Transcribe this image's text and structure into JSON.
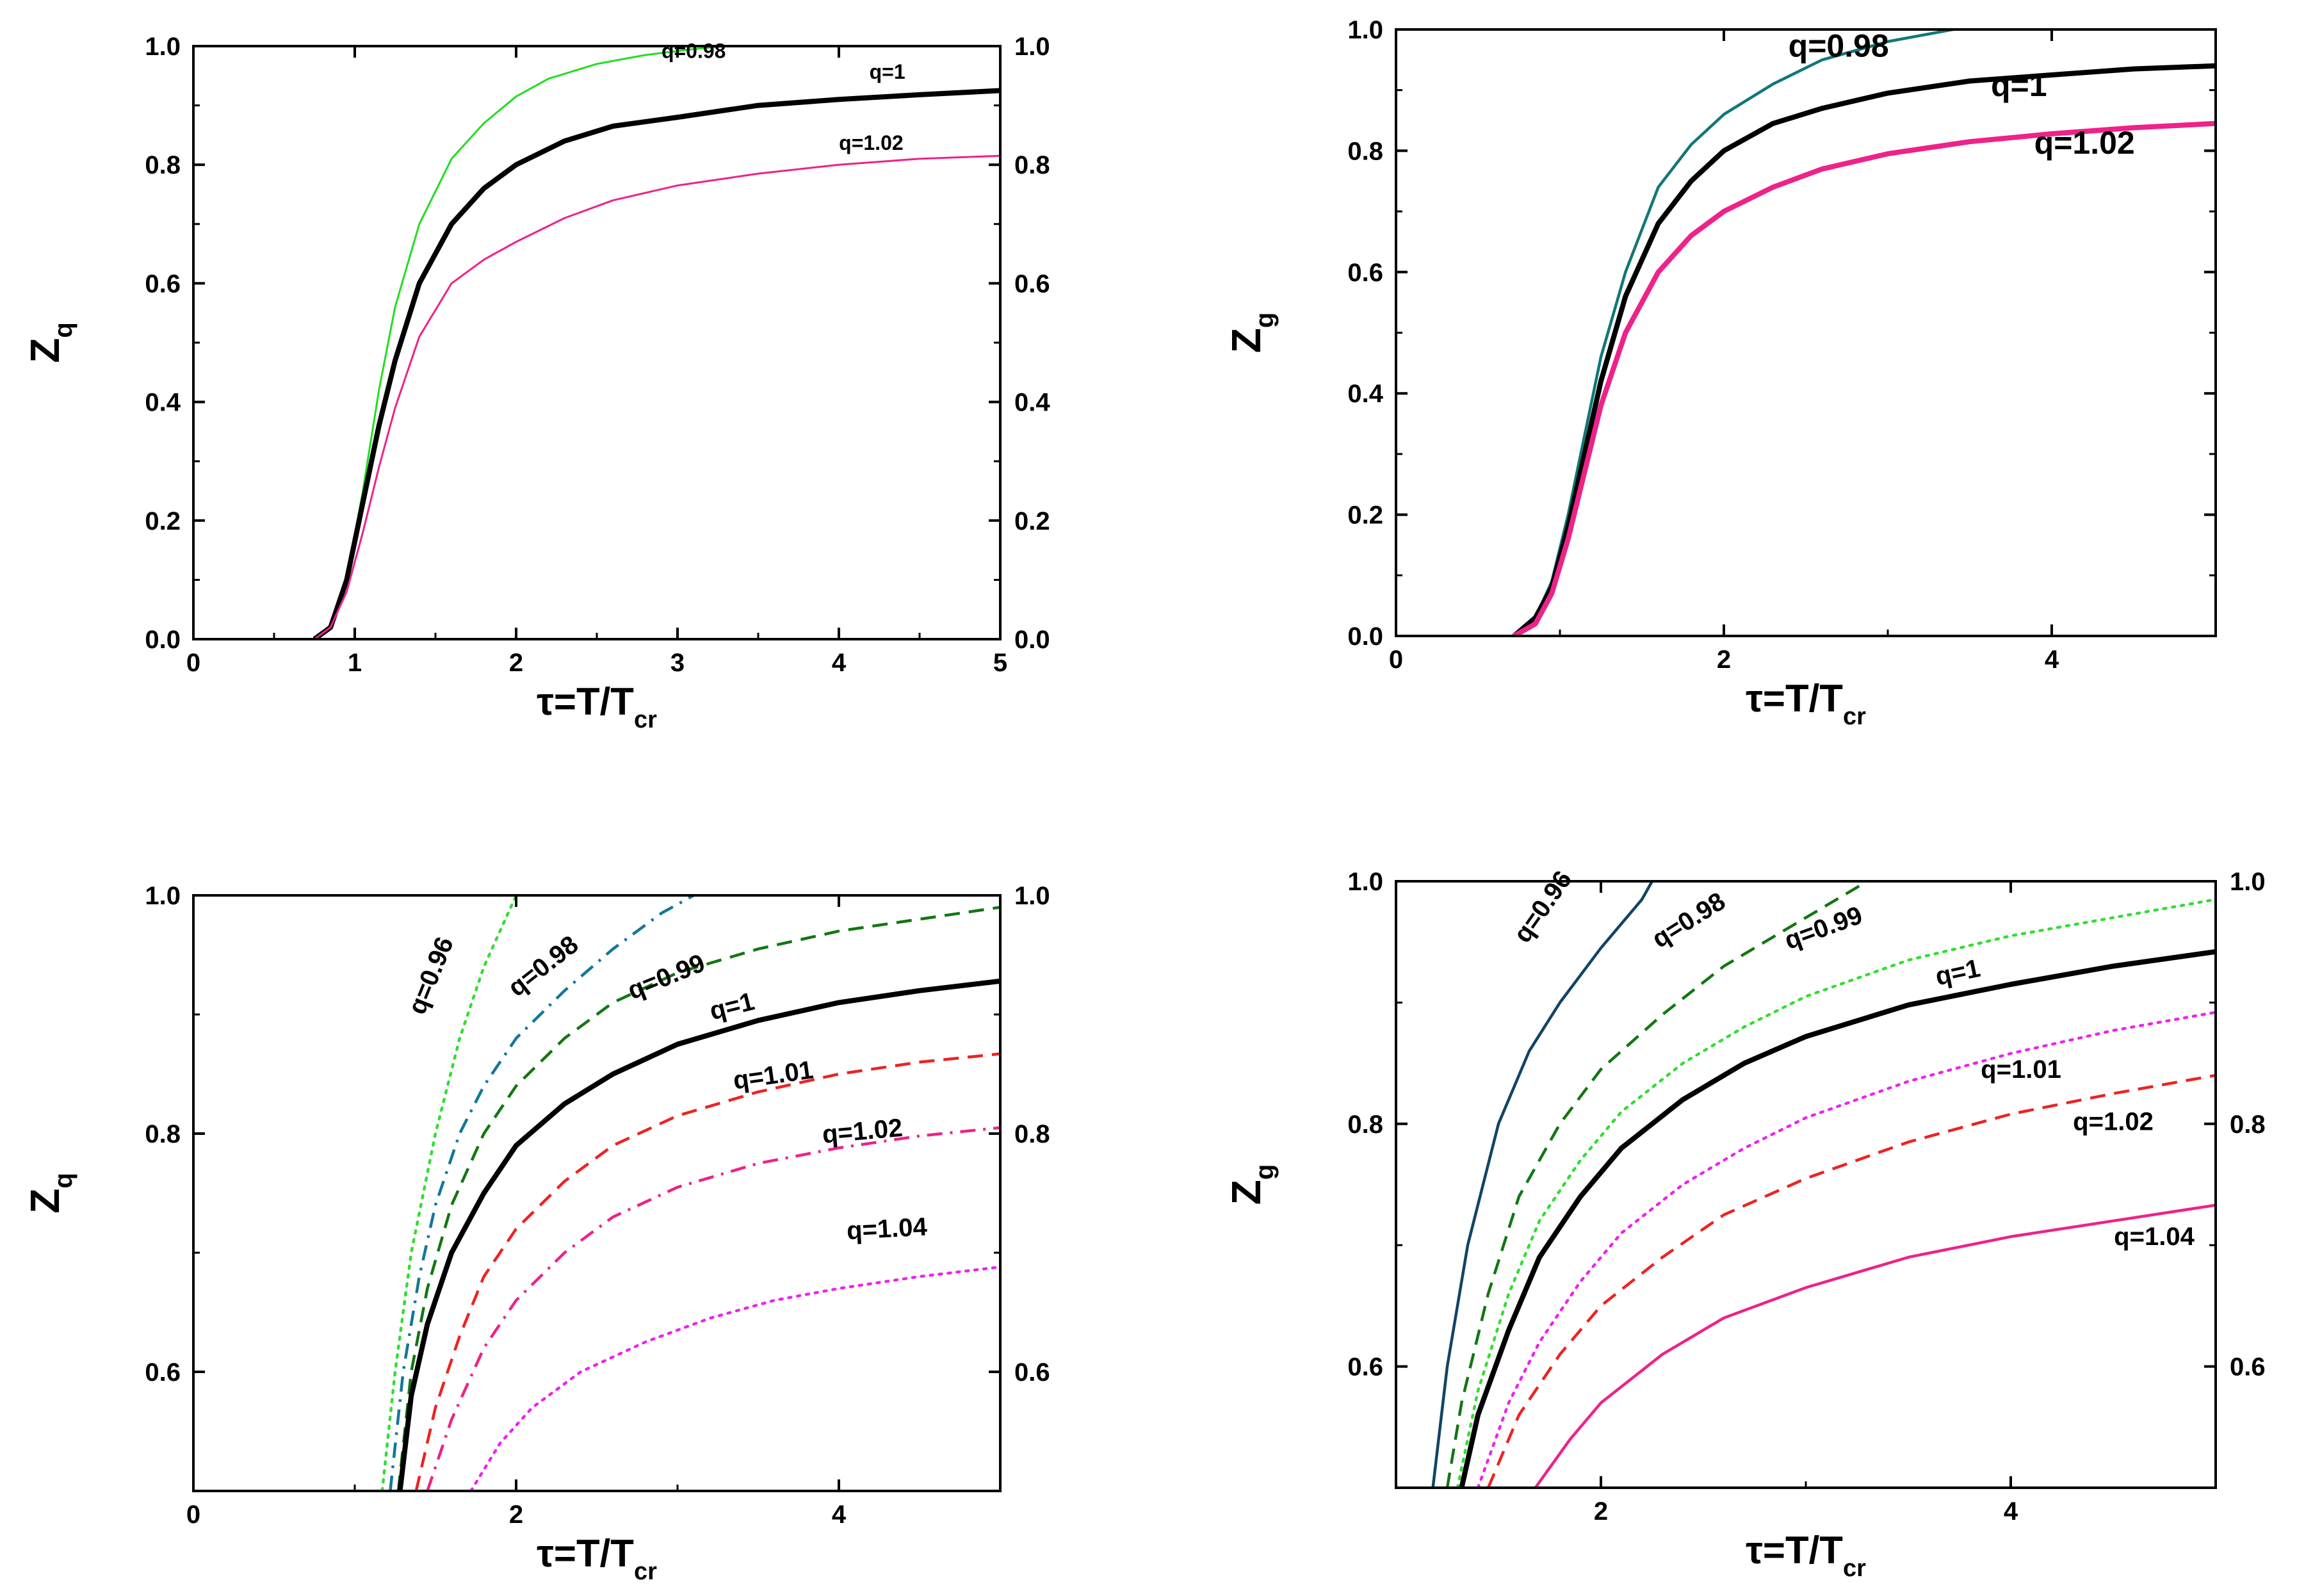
{
  "chart_data": [
    {
      "type": "line",
      "id": "top-left",
      "xlabel": "τ=T/T",
      "xlabel_sub": "cr",
      "ylabel": "Z",
      "ylabel_sub": "q",
      "xlim": [
        0,
        5
      ],
      "ylim": [
        0,
        1.0
      ],
      "xticks": [
        "0",
        "1",
        "2",
        "3",
        "4",
        "5"
      ],
      "yticks": [
        "0.0",
        "0.2",
        "0.4",
        "0.6",
        "0.8",
        "1.0"
      ],
      "yticks_right": [
        "0.0",
        "0.2",
        "0.4",
        "0.6",
        "0.8",
        "1.0"
      ],
      "series": [
        {
          "name": "q=0.98",
          "color": "#22dd22",
          "style": "solid",
          "width": "thin",
          "x": [
            0.75,
            0.85,
            0.95,
            1.05,
            1.15,
            1.25,
            1.4,
            1.6,
            1.8,
            2.0,
            2.2,
            2.5,
            2.8,
            3.1,
            3.3
          ],
          "y": [
            0.0,
            0.02,
            0.1,
            0.25,
            0.42,
            0.56,
            0.7,
            0.81,
            0.87,
            0.915,
            0.945,
            0.97,
            0.985,
            0.995,
            1.0
          ]
        },
        {
          "name": "q=1",
          "color": "#000000",
          "style": "solid",
          "width": "thick",
          "x": [
            0.75,
            0.85,
            0.95,
            1.05,
            1.15,
            1.25,
            1.4,
            1.6,
            1.8,
            2.0,
            2.3,
            2.6,
            3.0,
            3.5,
            4.0,
            4.5,
            5.0
          ],
          "y": [
            0.0,
            0.02,
            0.1,
            0.23,
            0.36,
            0.47,
            0.6,
            0.7,
            0.76,
            0.8,
            0.84,
            0.865,
            0.88,
            0.9,
            0.91,
            0.918,
            0.925
          ]
        },
        {
          "name": "q=1.02",
          "color": "#ee2288",
          "style": "solid",
          "width": "thin",
          "x": [
            0.75,
            0.85,
            0.95,
            1.05,
            1.15,
            1.25,
            1.4,
            1.6,
            1.8,
            2.0,
            2.3,
            2.6,
            3.0,
            3.5,
            4.0,
            4.5,
            5.0
          ],
          "y": [
            0.0,
            0.02,
            0.08,
            0.18,
            0.29,
            0.39,
            0.51,
            0.6,
            0.64,
            0.67,
            0.71,
            0.74,
            0.765,
            0.785,
            0.8,
            0.81,
            0.815
          ]
        }
      ],
      "labels": [
        {
          "text": "q=0.98",
          "x": 3.1,
          "y": 0.98
        },
        {
          "text": "q=1",
          "x": 4.3,
          "y": 0.945
        },
        {
          "text": "q=1.02",
          "x": 4.2,
          "y": 0.825
        }
      ]
    },
    {
      "type": "line",
      "id": "top-right",
      "xlabel": "τ=T/T",
      "xlabel_sub": "cr",
      "ylabel": "Z",
      "ylabel_sub": "g",
      "xlim": [
        0,
        5
      ],
      "ylim": [
        0,
        1.0
      ],
      "xticks": [
        "0",
        "2",
        "4"
      ],
      "yticks": [
        "0.0",
        "0.2",
        "0.4",
        "0.6",
        "0.8",
        "1.0"
      ],
      "series": [
        {
          "name": "q=0.98",
          "color": "#117777",
          "style": "solid",
          "width": "medium",
          "x": [
            0.72,
            0.85,
            0.95,
            1.05,
            1.15,
            1.25,
            1.4,
            1.6,
            1.8,
            2.0,
            2.3,
            2.6,
            3.0,
            3.4
          ],
          "y": [
            0.0,
            0.03,
            0.09,
            0.2,
            0.33,
            0.46,
            0.6,
            0.74,
            0.81,
            0.86,
            0.91,
            0.95,
            0.98,
            1.0
          ]
        },
        {
          "name": "q=1",
          "color": "#000000",
          "style": "solid",
          "width": "thick",
          "x": [
            0.72,
            0.85,
            0.95,
            1.05,
            1.15,
            1.25,
            1.4,
            1.6,
            1.8,
            2.0,
            2.3,
            2.6,
            3.0,
            3.5,
            4.0,
            4.5,
            5.0
          ],
          "y": [
            0.0,
            0.03,
            0.08,
            0.18,
            0.3,
            0.42,
            0.56,
            0.68,
            0.75,
            0.8,
            0.845,
            0.87,
            0.895,
            0.915,
            0.925,
            0.935,
            0.94
          ]
        },
        {
          "name": "q=1.02",
          "color": "#ee2288",
          "style": "solid",
          "width": "thick",
          "x": [
            0.72,
            0.85,
            0.95,
            1.05,
            1.15,
            1.25,
            1.4,
            1.6,
            1.8,
            2.0,
            2.3,
            2.6,
            3.0,
            3.5,
            4.0,
            4.5,
            5.0
          ],
          "y": [
            0.0,
            0.02,
            0.07,
            0.16,
            0.27,
            0.38,
            0.5,
            0.6,
            0.66,
            0.7,
            0.74,
            0.77,
            0.795,
            0.815,
            0.828,
            0.838,
            0.845
          ]
        }
      ],
      "labels": [
        {
          "text": "q=0.98",
          "x": 2.7,
          "y": 0.955
        },
        {
          "text": "q=1",
          "x": 3.8,
          "y": 0.89
        },
        {
          "text": "q=1.02",
          "x": 4.2,
          "y": 0.795
        }
      ]
    },
    {
      "type": "line",
      "id": "bottom-left",
      "xlabel": "τ=T/T",
      "xlabel_sub": "cr",
      "ylabel": "Z",
      "ylabel_sub": "q",
      "xlim": [
        0,
        5
      ],
      "ylim": [
        0.5,
        1.0
      ],
      "xticks": [
        "0",
        "2",
        "4"
      ],
      "yticks": [
        "0.6",
        "0.8",
        "1.0"
      ],
      "yticks_right": [
        "0.6",
        "0.8",
        "1.0"
      ],
      "series": [
        {
          "name": "q=0.96",
          "color": "#33dd33",
          "style": "dotted",
          "width": "medium",
          "x": [
            1.17,
            1.25,
            1.35,
            1.5,
            1.65,
            1.8,
            2.0
          ],
          "y": [
            0.5,
            0.6,
            0.7,
            0.8,
            0.88,
            0.94,
            1.0
          ]
        },
        {
          "name": "q=0.98",
          "color": "#117799",
          "style": "dashdot",
          "width": "medium",
          "x": [
            1.22,
            1.3,
            1.4,
            1.5,
            1.65,
            1.8,
            2.0,
            2.3,
            2.6,
            2.9,
            3.1
          ],
          "y": [
            0.5,
            0.6,
            0.68,
            0.74,
            0.8,
            0.84,
            0.88,
            0.92,
            0.955,
            0.985,
            1.0
          ]
        },
        {
          "name": "q=0.99",
          "color": "#117711",
          "style": "dashed",
          "width": "medium",
          "x": [
            1.27,
            1.35,
            1.45,
            1.6,
            1.8,
            2.0,
            2.3,
            2.6,
            3.0,
            3.5,
            4.0,
            4.5,
            5.0
          ],
          "y": [
            0.5,
            0.6,
            0.67,
            0.74,
            0.8,
            0.84,
            0.88,
            0.91,
            0.935,
            0.955,
            0.97,
            0.98,
            0.99
          ]
        },
        {
          "name": "q=1",
          "color": "#000000",
          "style": "solid",
          "width": "thick",
          "x": [
            1.28,
            1.35,
            1.45,
            1.6,
            1.8,
            2.0,
            2.3,
            2.6,
            3.0,
            3.5,
            4.0,
            4.5,
            5.0
          ],
          "y": [
            0.5,
            0.58,
            0.64,
            0.7,
            0.75,
            0.79,
            0.825,
            0.85,
            0.875,
            0.895,
            0.91,
            0.92,
            0.928
          ]
        },
        {
          "name": "q=1.01",
          "color": "#ee2222",
          "style": "dashed",
          "width": "medium",
          "x": [
            1.38,
            1.5,
            1.65,
            1.8,
            2.0,
            2.3,
            2.6,
            3.0,
            3.5,
            4.0,
            4.5,
            5.0
          ],
          "y": [
            0.5,
            0.57,
            0.63,
            0.68,
            0.72,
            0.76,
            0.79,
            0.815,
            0.835,
            0.85,
            0.86,
            0.867
          ]
        },
        {
          "name": "q=1.02",
          "color": "#ee2288",
          "style": "dashdot",
          "width": "medium",
          "x": [
            1.45,
            1.6,
            1.8,
            2.0,
            2.3,
            2.6,
            3.0,
            3.5,
            4.0,
            4.5,
            5.0
          ],
          "y": [
            0.5,
            0.56,
            0.62,
            0.66,
            0.7,
            0.73,
            0.755,
            0.775,
            0.788,
            0.798,
            0.805
          ]
        },
        {
          "name": "q=1.04",
          "color": "#ee22ee",
          "style": "dotted",
          "width": "medium",
          "x": [
            1.72,
            1.9,
            2.1,
            2.4,
            2.8,
            3.2,
            3.6,
            4.0,
            4.5,
            5.0
          ],
          "y": [
            0.5,
            0.54,
            0.57,
            0.6,
            0.625,
            0.645,
            0.66,
            0.67,
            0.68,
            0.688
          ]
        }
      ],
      "labels": [
        {
          "text": "q=0.96",
          "x": 1.52,
          "y": 0.93,
          "angle": -68
        },
        {
          "text": "q=0.98",
          "x": 2.2,
          "y": 0.935,
          "angle": -38
        },
        {
          "text": "q=0.99",
          "x": 2.95,
          "y": 0.925,
          "angle": -22
        },
        {
          "text": "q=1",
          "x": 3.35,
          "y": 0.9,
          "angle": -14
        },
        {
          "text": "q=1.01",
          "x": 3.6,
          "y": 0.842,
          "angle": -8
        },
        {
          "text": "q=1.02",
          "x": 4.15,
          "y": 0.795,
          "angle": -5
        },
        {
          "text": "q=1.04",
          "x": 4.3,
          "y": 0.713,
          "angle": -3
        }
      ]
    },
    {
      "type": "line",
      "id": "bottom-right",
      "xlabel": "τ=T/T",
      "xlabel_sub": "cr",
      "ylabel": "Z",
      "ylabel_sub": "g",
      "xlim": [
        1.0,
        5.0
      ],
      "ylim": [
        0.5,
        1.0
      ],
      "xticks": [
        "2",
        "4"
      ],
      "yticks": [
        "0.6",
        "0.8",
        "1.0"
      ],
      "yticks_right": [
        "0.6",
        "0.8",
        "1.0"
      ],
      "series": [
        {
          "name": "q=0.96",
          "color": "#114466",
          "style": "solid",
          "width": "medium",
          "x": [
            1.18,
            1.25,
            1.35,
            1.5,
            1.65,
            1.8,
            2.0,
            2.2,
            2.25
          ],
          "y": [
            0.5,
            0.6,
            0.7,
            0.8,
            0.86,
            0.9,
            0.945,
            0.985,
            1.0
          ]
        },
        {
          "name": "q=0.98",
          "color": "#117711",
          "style": "dashed",
          "width": "medium",
          "x": [
            1.25,
            1.32,
            1.45,
            1.6,
            1.8,
            2.0,
            2.3,
            2.6,
            3.0,
            3.3
          ],
          "y": [
            0.5,
            0.57,
            0.66,
            0.74,
            0.8,
            0.845,
            0.89,
            0.93,
            0.97,
            1.0
          ]
        },
        {
          "name": "q=0.99",
          "color": "#33dd33",
          "style": "dotted",
          "width": "medium",
          "x": [
            1.3,
            1.4,
            1.55,
            1.7,
            1.9,
            2.1,
            2.4,
            2.7,
            3.0,
            3.5,
            4.0,
            4.5,
            5.0
          ],
          "y": [
            0.5,
            0.58,
            0.66,
            0.72,
            0.77,
            0.81,
            0.85,
            0.88,
            0.905,
            0.935,
            0.955,
            0.97,
            0.985
          ]
        },
        {
          "name": "q=1",
          "color": "#000000",
          "style": "solid",
          "width": "thick",
          "x": [
            1.32,
            1.4,
            1.55,
            1.7,
            1.9,
            2.1,
            2.4,
            2.7,
            3.0,
            3.5,
            4.0,
            4.5,
            5.0
          ],
          "y": [
            0.5,
            0.56,
            0.63,
            0.69,
            0.74,
            0.78,
            0.82,
            0.85,
            0.872,
            0.898,
            0.915,
            0.93,
            0.942
          ]
        },
        {
          "name": "q=1.01",
          "color": "#ee22ee",
          "style": "dotted",
          "width": "medium",
          "x": [
            1.4,
            1.55,
            1.7,
            1.9,
            2.1,
            2.4,
            2.7,
            3.0,
            3.5,
            4.0,
            4.5,
            5.0
          ],
          "y": [
            0.5,
            0.57,
            0.62,
            0.67,
            0.71,
            0.75,
            0.78,
            0.805,
            0.835,
            0.858,
            0.877,
            0.892
          ]
        },
        {
          "name": "q=1.02",
          "color": "#ee2222",
          "style": "dashed",
          "width": "medium",
          "x": [
            1.45,
            1.6,
            1.8,
            2.0,
            2.3,
            2.6,
            3.0,
            3.5,
            4.0,
            4.5,
            5.0
          ],
          "y": [
            0.5,
            0.56,
            0.61,
            0.65,
            0.69,
            0.725,
            0.755,
            0.785,
            0.808,
            0.825,
            0.84
          ]
        },
        {
          "name": "q=1.04",
          "color": "#ee2288",
          "style": "solid",
          "width": "medium",
          "x": [
            1.68,
            1.85,
            2.0,
            2.3,
            2.6,
            3.0,
            3.5,
            4.0,
            4.5,
            5.0
          ],
          "y": [
            0.5,
            0.54,
            0.57,
            0.61,
            0.64,
            0.665,
            0.69,
            0.707,
            0.72,
            0.733
          ]
        }
      ],
      "labels": [
        {
          "text": "q=0.96",
          "x": 1.75,
          "y": 0.975,
          "angle": -55
        },
        {
          "text": "q=0.98",
          "x": 2.45,
          "y": 0.962,
          "angle": -32
        },
        {
          "text": "q=0.99",
          "x": 3.1,
          "y": 0.955,
          "angle": -20
        },
        {
          "text": "q=1",
          "x": 3.75,
          "y": 0.918,
          "angle": -12
        },
        {
          "text": "q=1.01",
          "x": 4.05,
          "y": 0.838,
          "angle": 0
        },
        {
          "text": "q=1.02",
          "x": 4.5,
          "y": 0.795,
          "angle": 0
        },
        {
          "text": "q=1.04",
          "x": 4.7,
          "y": 0.7,
          "angle": 0
        }
      ]
    }
  ]
}
